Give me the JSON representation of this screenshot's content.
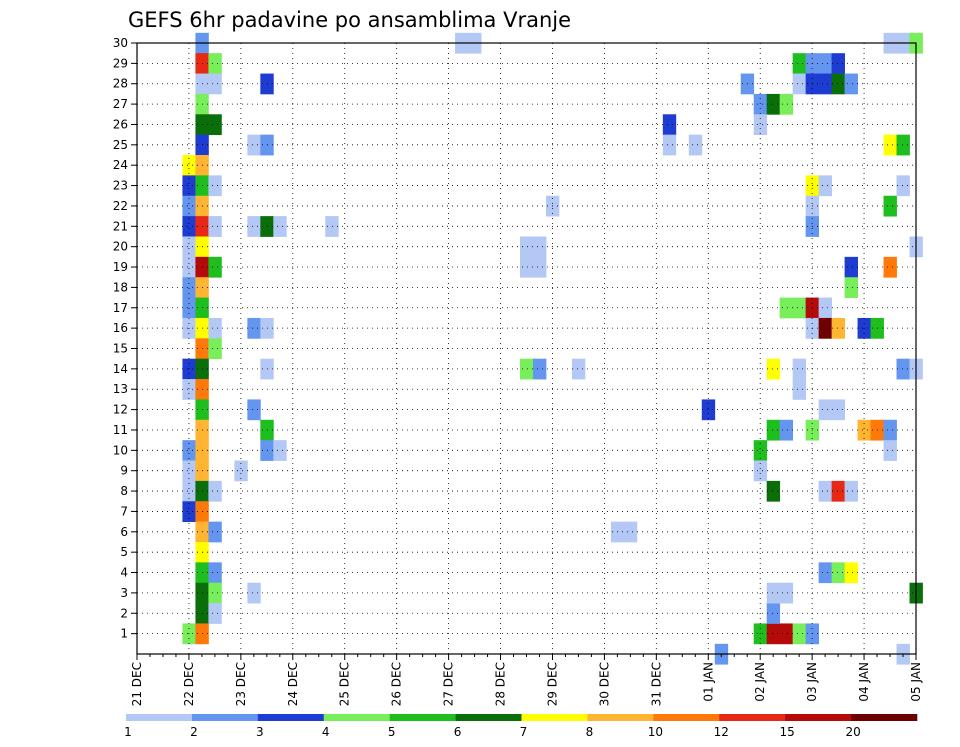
{
  "chart_data": {
    "type": "heatmap",
    "title": "GEFS 6hr padavine po ansamblima Vranje",
    "xlabel": "",
    "ylabel": "",
    "x_range": [
      "21 DEC 00Z",
      "05 JAN 00Z"
    ],
    "x_step_hours": 6,
    "x_tick_labels": [
      "21 DEC",
      "22 DEC",
      "23 DEC",
      "24 DEC",
      "25 DEC",
      "26 DEC",
      "27 DEC",
      "28 DEC",
      "29 DEC",
      "30 DEC",
      "31 DEC",
      "01 JAN",
      "02 JAN",
      "03 JAN",
      "04 JAN",
      "05 JAN"
    ],
    "y_range": [
      0,
      30
    ],
    "y_tick_labels": [
      1,
      2,
      3,
      4,
      5,
      6,
      7,
      8,
      9,
      10,
      11,
      12,
      13,
      14,
      15,
      16,
      17,
      18,
      19,
      20,
      21,
      22,
      23,
      24,
      25,
      26,
      27,
      28,
      29,
      30
    ],
    "grid": true,
    "colorbar": {
      "placement": "bottom",
      "tick_labels": [
        "1",
        "2",
        "3",
        "4",
        "5",
        "6",
        "7",
        "8",
        "10",
        "12",
        "15",
        "20"
      ],
      "bins": [
        {
          "level": 1,
          "color": "#b4c8f5"
        },
        {
          "level": 2,
          "color": "#6496f0"
        },
        {
          "level": 3,
          "color": "#1e3cd2"
        },
        {
          "level": 4,
          "color": "#78ee5a"
        },
        {
          "level": 5,
          "color": "#1ebe1e"
        },
        {
          "level": 6,
          "color": "#0a6e0a"
        },
        {
          "level": 7,
          "color": "#ffff00"
        },
        {
          "level": 8,
          "color": "#ffb432"
        },
        {
          "level": 10,
          "color": "#ff780a"
        },
        {
          "level": 12,
          "color": "#e62814"
        },
        {
          "level": 15,
          "color": "#b40a0a"
        },
        {
          "level": 20,
          "color": "#6e0000"
        }
      ]
    },
    "cells_format": "[step_from_21DEC_00Z (6h), ensemble_member, precip_mm]",
    "cells": [
      [
        5,
        30,
        2
      ],
      [
        5,
        29,
        12
      ],
      [
        6,
        29,
        4
      ],
      [
        5,
        28,
        1
      ],
      [
        6,
        28,
        1
      ],
      [
        10,
        28,
        3
      ],
      [
        5,
        27,
        4
      ],
      [
        5,
        26,
        6
      ],
      [
        6,
        26,
        6
      ],
      [
        5,
        25,
        3
      ],
      [
        9,
        25,
        1
      ],
      [
        10,
        25,
        2
      ],
      [
        4,
        24,
        7
      ],
      [
        5,
        24,
        8
      ],
      [
        4,
        23,
        3
      ],
      [
        5,
        23,
        5
      ],
      [
        6,
        23,
        1
      ],
      [
        4,
        22,
        2
      ],
      [
        5,
        22,
        8
      ],
      [
        4,
        21,
        3
      ],
      [
        5,
        21,
        12
      ],
      [
        6,
        21,
        1
      ],
      [
        9,
        21,
        1
      ],
      [
        10,
        21,
        6
      ],
      [
        11,
        21,
        1
      ],
      [
        15,
        21,
        1
      ],
      [
        4,
        20,
        1
      ],
      [
        5,
        20,
        7
      ],
      [
        4,
        19,
        1
      ],
      [
        5,
        19,
        15
      ],
      [
        6,
        19,
        5
      ],
      [
        4,
        18,
        2
      ],
      [
        5,
        18,
        8
      ],
      [
        4,
        17,
        2
      ],
      [
        5,
        17,
        5
      ],
      [
        4,
        16,
        1
      ],
      [
        5,
        16,
        7
      ],
      [
        6,
        16,
        1
      ],
      [
        9,
        16,
        2
      ],
      [
        10,
        16,
        1
      ],
      [
        5,
        15,
        10
      ],
      [
        6,
        15,
        4
      ],
      [
        4,
        14,
        3
      ],
      [
        5,
        14,
        6
      ],
      [
        10,
        14,
        1
      ],
      [
        4,
        13,
        1
      ],
      [
        5,
        13,
        10
      ],
      [
        5,
        12,
        5
      ],
      [
        9,
        12,
        2
      ],
      [
        5,
        11,
        8
      ],
      [
        10,
        11,
        5
      ],
      [
        4,
        10,
        2
      ],
      [
        5,
        10,
        8
      ],
      [
        10,
        10,
        2
      ],
      [
        11,
        10,
        1
      ],
      [
        4,
        9,
        1
      ],
      [
        5,
        9,
        8
      ],
      [
        8,
        9,
        1
      ],
      [
        4,
        8,
        1
      ],
      [
        5,
        8,
        6
      ],
      [
        6,
        8,
        1
      ],
      [
        4,
        7,
        3
      ],
      [
        5,
        7,
        10
      ],
      [
        5,
        6,
        8
      ],
      [
        6,
        6,
        2
      ],
      [
        5,
        5,
        7
      ],
      [
        5,
        4,
        5
      ],
      [
        6,
        4,
        2
      ],
      [
        5,
        3,
        6
      ],
      [
        6,
        3,
        4
      ],
      [
        9,
        3,
        1
      ],
      [
        5,
        2,
        6
      ],
      [
        6,
        2,
        1
      ],
      [
        4,
        1,
        4
      ],
      [
        5,
        1,
        10
      ],
      [
        25,
        30,
        1
      ],
      [
        26,
        30,
        1
      ],
      [
        30,
        20,
        1
      ],
      [
        31,
        20,
        1
      ],
      [
        30,
        19,
        1
      ],
      [
        31,
        19,
        1
      ],
      [
        32,
        22,
        1
      ],
      [
        30,
        14,
        4
      ],
      [
        31,
        14,
        2
      ],
      [
        34,
        14,
        1
      ],
      [
        37,
        6,
        1
      ],
      [
        38,
        6,
        1
      ],
      [
        41,
        26,
        3
      ],
      [
        41,
        25,
        1
      ],
      [
        43,
        25,
        1
      ],
      [
        44,
        12,
        3
      ],
      [
        45,
        0,
        2
      ],
      [
        47,
        28,
        2
      ],
      [
        48,
        27,
        2
      ],
      [
        49,
        27,
        6
      ],
      [
        50,
        27,
        4
      ],
      [
        48,
        26,
        1
      ],
      [
        48,
        10,
        5
      ],
      [
        49,
        11,
        5
      ],
      [
        50,
        11,
        2
      ],
      [
        48,
        9,
        1
      ],
      [
        49,
        8,
        6
      ],
      [
        48,
        1,
        5
      ],
      [
        49,
        1,
        15
      ],
      [
        50,
        1,
        15
      ],
      [
        51,
        1,
        4
      ],
      [
        52,
        1,
        2
      ],
      [
        49,
        2,
        2
      ],
      [
        49,
        3,
        1
      ],
      [
        50,
        3,
        1
      ],
      [
        49,
        14,
        7
      ],
      [
        50,
        17,
        4
      ],
      [
        51,
        17,
        4
      ],
      [
        51,
        29,
        5
      ],
      [
        52,
        29,
        2
      ],
      [
        53,
        29,
        2
      ],
      [
        54,
        29,
        3
      ],
      [
        51,
        28,
        1
      ],
      [
        52,
        28,
        3
      ],
      [
        53,
        28,
        3
      ],
      [
        54,
        28,
        6
      ],
      [
        55,
        28,
        2
      ],
      [
        52,
        23,
        7
      ],
      [
        53,
        23,
        1
      ],
      [
        52,
        22,
        1
      ],
      [
        52,
        21,
        2
      ],
      [
        52,
        17,
        15
      ],
      [
        53,
        17,
        1
      ],
      [
        52,
        16,
        1
      ],
      [
        53,
        16,
        20
      ],
      [
        54,
        16,
        8
      ],
      [
        56,
        16,
        3
      ],
      [
        57,
        16,
        5
      ],
      [
        51,
        14,
        1
      ],
      [
        51,
        13,
        1
      ],
      [
        52,
        11,
        4
      ],
      [
        53,
        12,
        1
      ],
      [
        54,
        12,
        1
      ],
      [
        53,
        8,
        1
      ],
      [
        54,
        8,
        12
      ],
      [
        55,
        8,
        1
      ],
      [
        53,
        4,
        2
      ],
      [
        54,
        4,
        4
      ],
      [
        55,
        4,
        7
      ],
      [
        55,
        19,
        3
      ],
      [
        55,
        18,
        4
      ],
      [
        58,
        19,
        10
      ],
      [
        58,
        30,
        1
      ],
      [
        59,
        30,
        1
      ],
      [
        60,
        30,
        4
      ],
      [
        58,
        25,
        7
      ],
      [
        59,
        25,
        5
      ],
      [
        58,
        22,
        5
      ],
      [
        59,
        23,
        1
      ],
      [
        60,
        20,
        1
      ],
      [
        59,
        14,
        2
      ],
      [
        60,
        14,
        1
      ],
      [
        56,
        11,
        8
      ],
      [
        57,
        11,
        10
      ],
      [
        58,
        11,
        2
      ],
      [
        58,
        10,
        1
      ],
      [
        60,
        3,
        6
      ],
      [
        59,
        0,
        1
      ]
    ]
  }
}
